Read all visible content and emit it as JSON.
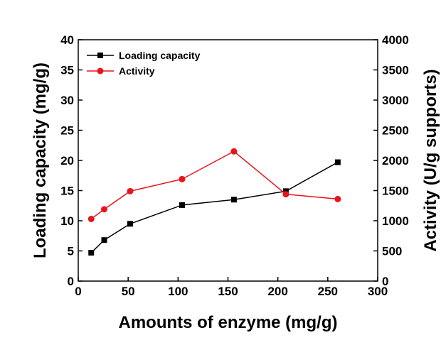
{
  "chart_data": {
    "type": "line",
    "x": [
      13,
      26,
      52,
      104,
      156,
      208,
      260
    ],
    "series": [
      {
        "name": "Loading capacity",
        "axis": "left",
        "color": "#000000",
        "marker": "square",
        "values": [
          4.7,
          6.8,
          9.5,
          12.6,
          13.5,
          14.9,
          19.7
        ]
      },
      {
        "name": "Activity",
        "axis": "right",
        "color": "#e8141b",
        "marker": "circle",
        "values": [
          1030,
          1190,
          1490,
          1690,
          2150,
          1440,
          1360
        ]
      }
    ],
    "xlabel": "Amounts of enzyme (mg/g)",
    "ylabel": "Loading capacity (mg/g)",
    "y2label": "Activity (U/g supports)",
    "xlim": [
      0,
      300
    ],
    "ylim": [
      0,
      40
    ],
    "y2lim": [
      0,
      4000
    ],
    "xticks": [
      0,
      50,
      100,
      150,
      200,
      250,
      300
    ],
    "yticks": [
      0,
      5,
      10,
      15,
      20,
      25,
      30,
      35,
      40
    ],
    "y2ticks": [
      0,
      500,
      1000,
      1500,
      2000,
      2500,
      3000,
      3500,
      4000
    ],
    "grid": false,
    "legend_position": "top-left"
  }
}
